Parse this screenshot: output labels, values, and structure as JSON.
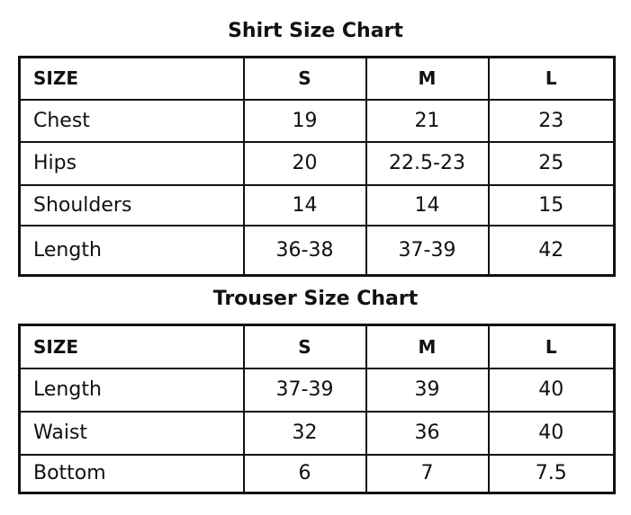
{
  "tables": [
    {
      "title": "Shirt Size Chart",
      "header": [
        "SIZE",
        "S",
        "M",
        "L"
      ],
      "rows": [
        [
          "Chest",
          "19",
          "21",
          "23"
        ],
        [
          "Hips",
          "20",
          "22.5-23",
          "25"
        ],
        [
          "Shoulders",
          "14",
          "14",
          "15"
        ],
        [
          "Length",
          "36-38",
          "37-39",
          "42"
        ]
      ]
    },
    {
      "title": "Trouser Size Chart",
      "header": [
        "SIZE",
        "S",
        "M",
        "L"
      ],
      "rows": [
        [
          "Length",
          "37-39",
          "39",
          "40"
        ],
        [
          "Waist",
          "32",
          "36",
          "40"
        ],
        [
          "Bottom",
          "6",
          "7",
          "7.5"
        ]
      ]
    }
  ]
}
